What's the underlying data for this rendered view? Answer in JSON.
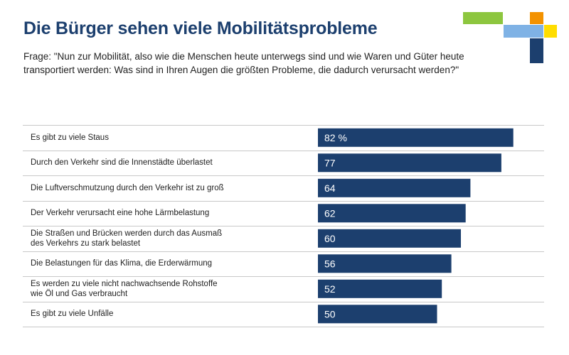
{
  "title": "Die Bürger sehen viele Mobilitätsprobleme",
  "question": "Frage: \"Nun zur Mobilität, also wie die Menschen heute unterwegs sind und wie Waren und Güter heute transportiert werden: Was sind in Ihren Augen die größten Probleme, die dadurch verursacht werden?\"",
  "logo": {
    "colors": [
      "#8dc63f",
      "#f39200",
      "#7fb2e5",
      "#ffdd00",
      "#1c3f6e"
    ]
  },
  "chart_data": {
    "type": "bar",
    "orientation": "horizontal",
    "unit": "%",
    "xlim": [
      0,
      100
    ],
    "bar_color": "#1c3f6e",
    "categories": [
      [
        "Es gibt zu viele Staus"
      ],
      [
        "Durch den Verkehr sind die Innenstädte überlastet"
      ],
      [
        "Die Luftverschmutzung durch den Verkehr ist zu groß"
      ],
      [
        "Der Verkehr verursacht eine hohe Lärmbelastung"
      ],
      [
        "Die Straßen und Brücken werden durch das Ausmaß",
        "des Verkehrs zu stark belastet"
      ],
      [
        "Die Belastungen für das Klima, die Erderwärmung"
      ],
      [
        "Es werden zu viele nicht nachwachsende Rohstoffe",
        "wie Öl und Gas verbraucht"
      ],
      [
        "Es gibt zu viele Unfälle"
      ]
    ],
    "values": [
      82,
      77,
      64,
      62,
      60,
      56,
      52,
      50
    ],
    "value_labels": [
      "82 %",
      "77",
      "64",
      "62",
      "60",
      "56",
      "52",
      "50"
    ]
  }
}
